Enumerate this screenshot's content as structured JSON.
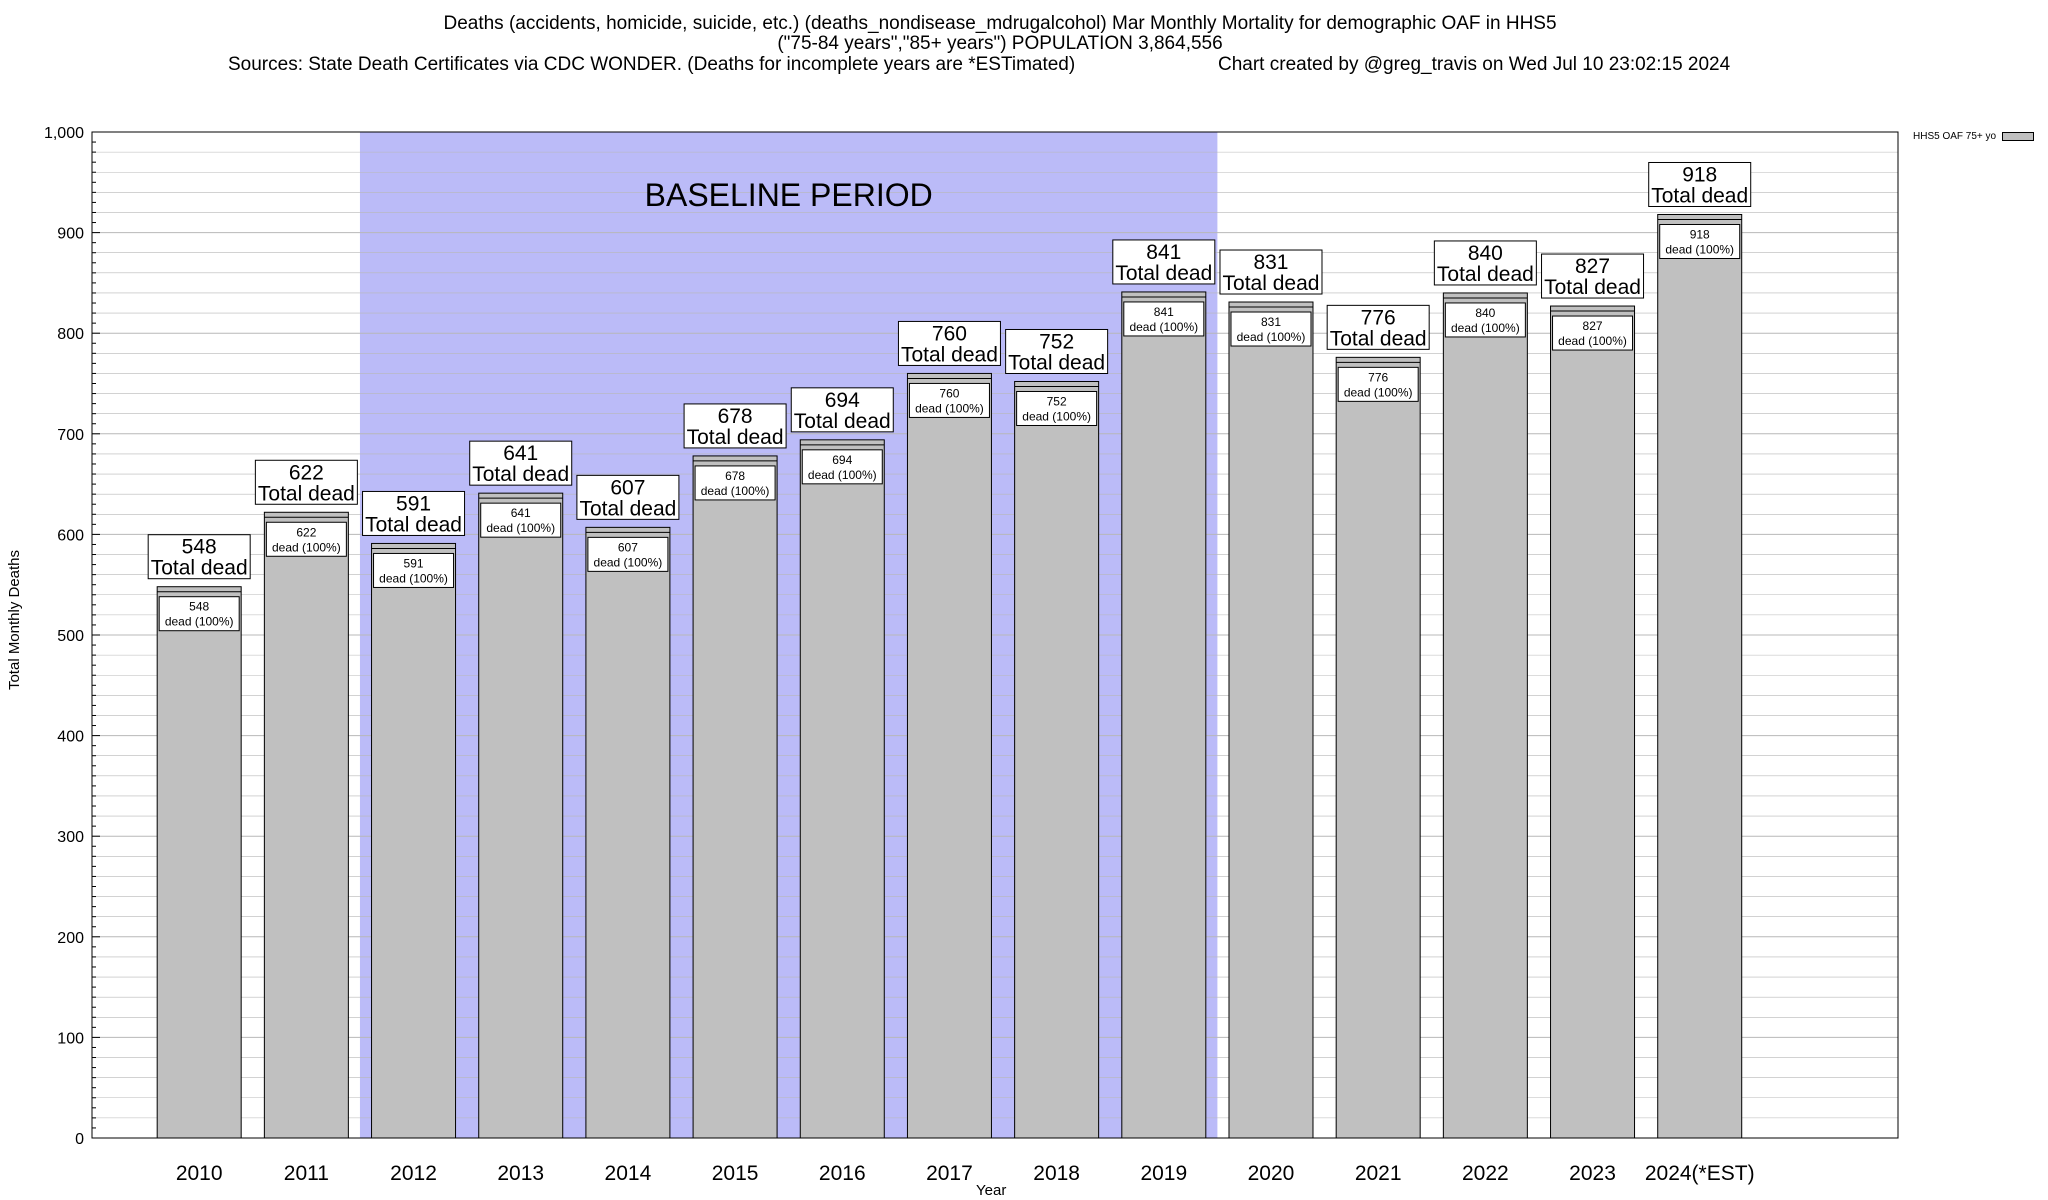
{
  "title": {
    "line1": "Deaths (accidents, homicide, suicide, etc.) (deaths_nondisease_mdrugalcohol) Mar Monthly Mortality for demographic OAF in HHS5",
    "line2": "(\"75-84 years\",\"85+ years\") POPULATION 3,864,556",
    "sources": "Sources: State Death Certificates via CDC WONDER. (Deaths for incomplete years are *ESTimated)",
    "created": "Chart created by @greg_travis on Wed Jul 10 23:02:15 2024"
  },
  "chart_data": {
    "type": "bar",
    "categories": [
      "2010",
      "2011",
      "2012",
      "2013",
      "2014",
      "2015",
      "2016",
      "2017",
      "2018",
      "2019",
      "2020",
      "2021",
      "2022",
      "2023",
      "2024(*EST)"
    ],
    "series": [
      {
        "name": "HHS5 OAF 75+ yo",
        "values": [
          548,
          622,
          591,
          641,
          607,
          678,
          694,
          760,
          752,
          841,
          831,
          776,
          840,
          827,
          918
        ]
      }
    ],
    "total_label": "Total dead",
    "inner_label": "dead (100%)",
    "xlabel": "Year",
    "ylabel": "Total Monthly Deaths",
    "ylim": [
      0,
      1000
    ],
    "yticks": [
      0,
      100,
      200,
      300,
      400,
      500,
      600,
      700,
      800,
      900,
      1000
    ],
    "ytick_labels": [
      "0",
      "100",
      "200",
      "300",
      "400",
      "500",
      "600",
      "700",
      "800",
      "900",
      "1,000"
    ],
    "grid": true,
    "legend_position": "top-right",
    "baseline": {
      "label": "BASELINE PERIOD",
      "from": "2012",
      "to": "2019"
    },
    "colors": {
      "bar": "#c0c0c0",
      "baseline": "#bbbbf8",
      "grid": "#b8b8b8"
    }
  }
}
